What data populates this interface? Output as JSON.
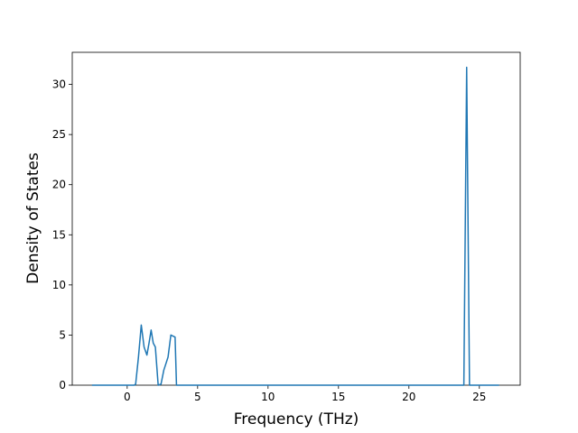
{
  "chart_data": {
    "type": "line",
    "x_label": "Frequency (THz)",
    "y_label": "Density of States",
    "x": [
      -2.5,
      0.5,
      0.6,
      0.8,
      1.0,
      1.2,
      1.4,
      1.55,
      1.7,
      1.85,
      2.0,
      2.2,
      2.4,
      2.6,
      2.9,
      3.1,
      3.4,
      3.5,
      23.9,
      24.1,
      24.3,
      26.4
    ],
    "series": [
      {
        "name": "DOS",
        "color": "#1f77b4",
        "values": [
          0,
          0,
          0.1,
          2.8,
          6.0,
          3.8,
          3.0,
          4.2,
          5.5,
          4.2,
          3.8,
          0,
          0.1,
          1.5,
          2.8,
          5.0,
          4.8,
          0,
          0,
          31.7,
          0,
          0
        ]
      }
    ],
    "xlim": [
      -3.9,
      27.9
    ],
    "ylim": [
      0,
      33.2
    ],
    "xticks": [
      0,
      5,
      10,
      15,
      20,
      25
    ],
    "yticks": [
      0,
      5,
      10,
      15,
      20,
      25,
      30
    ],
    "grid": false
  }
}
